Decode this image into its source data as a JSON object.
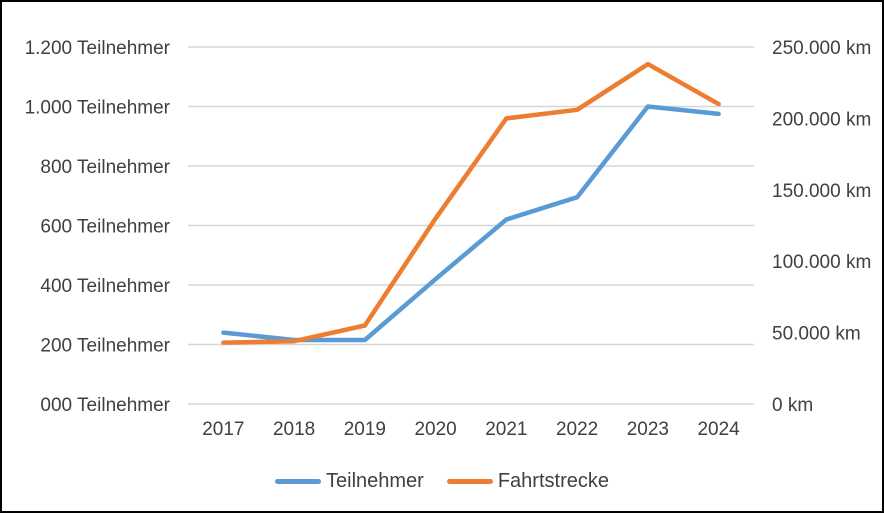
{
  "chart_data": {
    "type": "line",
    "title": "",
    "categories": [
      "2017",
      "2018",
      "2019",
      "2020",
      "2021",
      "2022",
      "2023",
      "2024"
    ],
    "series": [
      {
        "name": "Teilnehmer",
        "yaxis": "left",
        "color": "#5B9BD5",
        "values": [
          240,
          215,
          215,
          420,
          620,
          695,
          1000,
          975
        ]
      },
      {
        "name": "Fahrtstrecke",
        "yaxis": "right",
        "color": "#ED7D31",
        "values": [
          43000,
          44000,
          55000,
          130000,
          200000,
          206000,
          238000,
          210000
        ]
      }
    ],
    "left_axis": {
      "unit": "Teilnehmer",
      "min": 0,
      "max": 1200,
      "tick_step": 200,
      "tick_labels": [
        "000 Teilnehmer",
        "200 Teilnehmer",
        "400 Teilnehmer",
        "600 Teilnehmer",
        "800 Teilnehmer",
        "1.000 Teilnehmer",
        "1.200 Teilnehmer"
      ]
    },
    "right_axis": {
      "unit": "km",
      "min": 0,
      "max": 250000,
      "tick_step": 50000,
      "tick_labels": [
        "0 km",
        "50.000 km",
        "100.000 km",
        "150.000 km",
        "200.000 km",
        "250.000 km"
      ]
    },
    "grid": true,
    "legend": {
      "position": "bottom"
    },
    "styles": {
      "grid_color": "#D6D6D6",
      "text_color": "#404040",
      "background": "#FFFFFF",
      "border_color": "#000000",
      "line_width": 4.5
    }
  }
}
